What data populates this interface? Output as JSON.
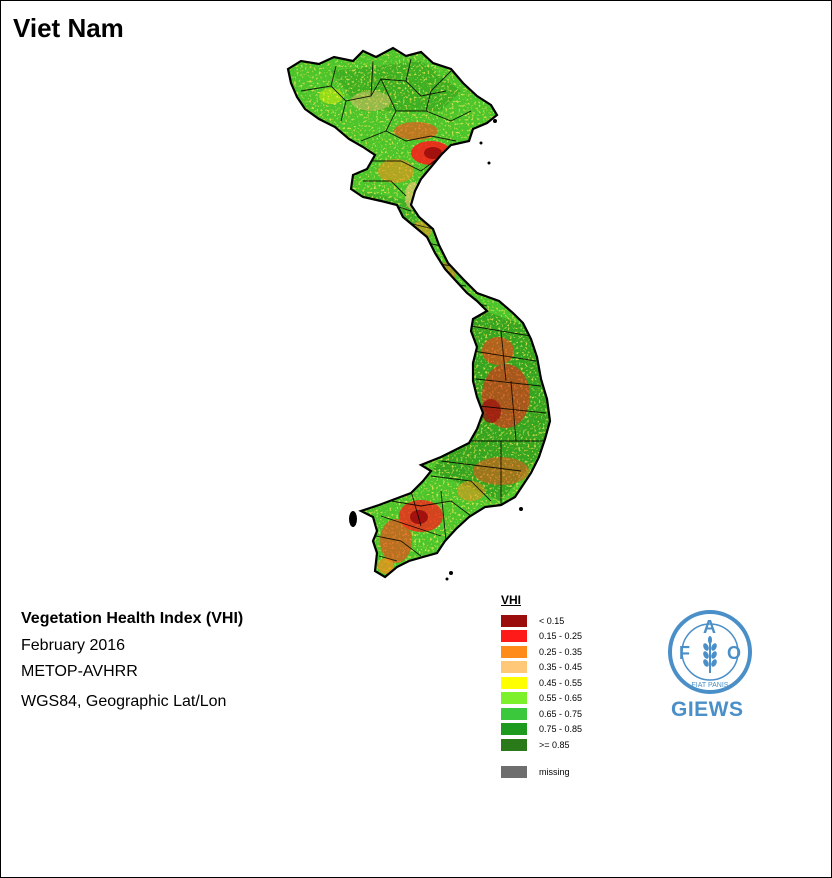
{
  "map": {
    "title": "Viet Nam",
    "index_name": "Vegetation Health Index (VHI)",
    "period": "February 2016",
    "sensor": "METOP-AVHRR",
    "projection": "WGS84, Geographic Lat/Lon"
  },
  "legend": {
    "title": "VHI",
    "classes": [
      {
        "label": "< 0.15",
        "color": "#9b0d0d"
      },
      {
        "label": "0.15 - 0.25",
        "color": "#ff1a1a"
      },
      {
        "label": "0.25 - 0.35",
        "color": "#ff8c1a"
      },
      {
        "label": "0.35 - 0.45",
        "color": "#ffc878"
      },
      {
        "label": "0.45 - 0.55",
        "color": "#ffff00"
      },
      {
        "label": "0.55 - 0.65",
        "color": "#7cf02a"
      },
      {
        "label": "0.65 - 0.75",
        "color": "#3cc83c"
      },
      {
        "label": "0.75 - 0.85",
        "color": "#1e9a1e"
      },
      {
        "label": ">= 0.85",
        "color": "#2a7a1a"
      }
    ],
    "missing": {
      "label": "missing",
      "color": "#6e6e6e"
    }
  },
  "logo": {
    "letters": [
      "F",
      "A",
      "O"
    ],
    "motto": "FIAT PANIS",
    "brand": "GIEWS",
    "color": "#4a8fc8"
  }
}
